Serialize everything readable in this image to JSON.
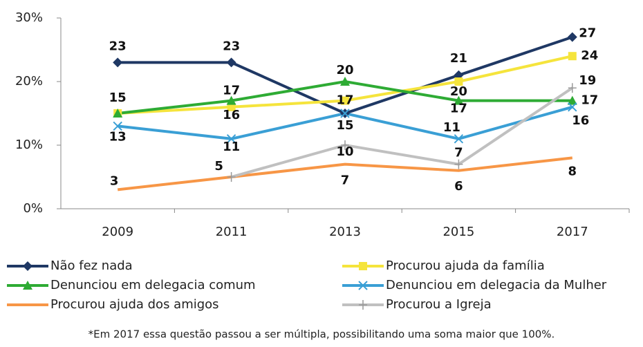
{
  "chart_data": {
    "type": "line",
    "categories": [
      "2009",
      "2011",
      "2013",
      "2015",
      "2017"
    ],
    "ylim": [
      0,
      30
    ],
    "yticks": [
      {
        "value": 0,
        "label": "0%"
      },
      {
        "value": 10,
        "label": "10%"
      },
      {
        "value": 20,
        "label": "20%"
      },
      {
        "value": 30,
        "label": "30%"
      }
    ],
    "series": [
      {
        "name": "Não fez nada",
        "color": "#1f3864",
        "marker": "diamond",
        "values": [
          23,
          23,
          15,
          21,
          27
        ],
        "value_labels": [
          "23",
          "23",
          null,
          "21",
          "27"
        ]
      },
      {
        "name": "Procurou ajuda da família",
        "color": "#f5e43c",
        "marker": "square",
        "values": [
          15,
          16,
          17,
          20,
          24
        ],
        "value_labels": [
          "15",
          "16",
          "17",
          "20",
          "24"
        ]
      },
      {
        "name": "Denunciou em delegacia comum",
        "color": "#2eab34",
        "marker": "triangle",
        "values": [
          15,
          17,
          20,
          17,
          17
        ],
        "value_labels": [
          null,
          "17",
          "20",
          "17",
          "17"
        ]
      },
      {
        "name": "Denunciou em delegacia da Mulher",
        "color": "#3a9fd5",
        "marker": "x",
        "values": [
          13,
          11,
          15,
          11,
          16
        ],
        "value_labels": [
          "13",
          "11",
          "15",
          "11",
          "16"
        ]
      },
      {
        "name": "Procurou ajuda dos amigos",
        "color": "#f79646",
        "marker": "none",
        "values": [
          3,
          5,
          7,
          6,
          8
        ],
        "value_labels": [
          "3",
          null,
          "7",
          "6",
          "8"
        ]
      },
      {
        "name": "Procurou a Igreja",
        "color": "#c0c0c0",
        "marker": "plus",
        "values": [
          null,
          5,
          10,
          7,
          19
        ],
        "value_labels": [
          null,
          "5",
          "10",
          "7",
          "19"
        ]
      }
    ],
    "footnote": "*Em 2017 essa questão passou a ser múltipla, possibilitando uma soma maior que 100%."
  }
}
